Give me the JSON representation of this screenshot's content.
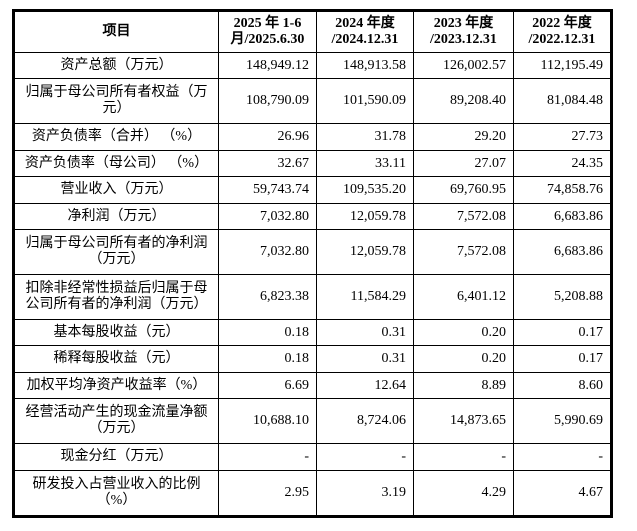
{
  "page": {
    "background_color": "#ffffff",
    "text_color": "#000000",
    "border_color": "#000000"
  },
  "table": {
    "columns": [
      {
        "line1": "项目",
        "line2": ""
      },
      {
        "line1": "2025 年 1-6",
        "line2": "月/2025.6.30"
      },
      {
        "line1": "2024 年度",
        "line2": "/2024.12.31"
      },
      {
        "line1": "2023 年度",
        "line2": "/2023.12.31"
      },
      {
        "line1": "2022 年度",
        "line2": "/2022.12.31"
      }
    ],
    "rows": [
      {
        "label": "资产总额（万元）",
        "values": [
          "148,949.12",
          "148,913.58",
          "126,002.57",
          "112,195.49"
        ]
      },
      {
        "label": "归属于母公司所有者权益（万元）",
        "values": [
          "108,790.09",
          "101,590.09",
          "89,208.40",
          "81,084.48"
        ]
      },
      {
        "label": "资产负债率（合并） （%）",
        "values": [
          "26.96",
          "31.78",
          "29.20",
          "27.73"
        ]
      },
      {
        "label": "资产负债率（母公司） （%）",
        "values": [
          "32.67",
          "33.11",
          "27.07",
          "24.35"
        ]
      },
      {
        "label": "营业收入（万元）",
        "values": [
          "59,743.74",
          "109,535.20",
          "69,760.95",
          "74,858.76"
        ]
      },
      {
        "label": "净利润（万元）",
        "values": [
          "7,032.80",
          "12,059.78",
          "7,572.08",
          "6,683.86"
        ]
      },
      {
        "label": "归属于母公司所有者的净利润（万元）",
        "values": [
          "7,032.80",
          "12,059.78",
          "7,572.08",
          "6,683.86"
        ]
      },
      {
        "label": "扣除非经常性损益后归属于母公司所有者的净利润（万元）",
        "values": [
          "6,823.38",
          "11,584.29",
          "6,401.12",
          "5,208.88"
        ]
      },
      {
        "label": "基本每股收益（元）",
        "values": [
          "0.18",
          "0.31",
          "0.20",
          "0.17"
        ]
      },
      {
        "label": "稀释每股收益（元）",
        "values": [
          "0.18",
          "0.31",
          "0.20",
          "0.17"
        ]
      },
      {
        "label": "加权平均净资产收益率（%）",
        "values": [
          "6.69",
          "12.64",
          "8.89",
          "8.60"
        ]
      },
      {
        "label": "经营活动产生的现金流量净额（万元）",
        "values": [
          "10,688.10",
          "8,724.06",
          "14,873.65",
          "5,990.69"
        ]
      },
      {
        "label": "现金分红（万元）",
        "values": [
          "-",
          "-",
          "-",
          "-"
        ]
      },
      {
        "label": "研发投入占营业收入的比例（%）",
        "values": [
          "2.95",
          "3.19",
          "4.29",
          "4.67"
        ]
      }
    ]
  }
}
